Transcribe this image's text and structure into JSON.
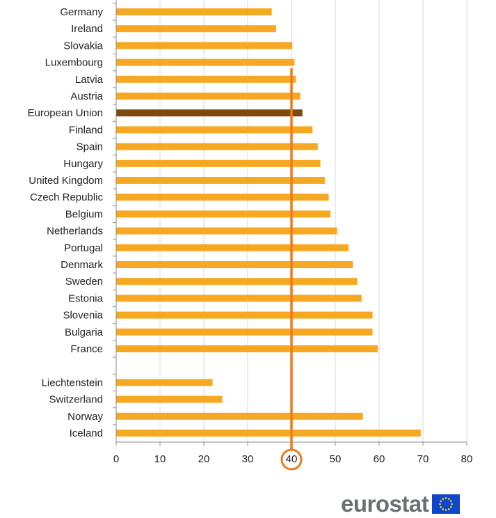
{
  "chart_data": {
    "type": "bar",
    "orientation": "horizontal",
    "title": "",
    "xlabel": "",
    "ylabel": "",
    "xlim": [
      0,
      80
    ],
    "xticks": [
      0,
      10,
      20,
      30,
      40,
      50,
      60,
      70,
      80
    ],
    "grid": true,
    "legend": "none",
    "colors": {
      "bar": "#f7a823",
      "highlight": "#7a4a12",
      "reference": "#f07a1a"
    },
    "reference_line": {
      "value": 40,
      "label": "40"
    },
    "categories": [
      "Germany",
      "Ireland",
      "Slovakia",
      "Luxembourg",
      "Latvia",
      "Austria",
      "European Union",
      "Finland",
      "Spain",
      "Hungary",
      "United Kingdom",
      "Czech Republic",
      "Belgium",
      "Netherlands",
      "Portugal",
      "Denmark",
      "Sweden",
      "Estonia",
      "Slovenia",
      "Bulgaria",
      "France",
      "",
      "Liechtenstein",
      "Switzerland",
      "Norway",
      "Iceland"
    ],
    "values": [
      35.5,
      36.5,
      40.2,
      40.7,
      41.0,
      42.0,
      42.5,
      44.8,
      46.0,
      46.6,
      47.6,
      48.5,
      48.9,
      50.4,
      53.0,
      54.0,
      55.0,
      56.0,
      58.5,
      58.5,
      59.7,
      null,
      22.0,
      24.2,
      56.3,
      69.5
    ],
    "highlight": [
      "European Union"
    ]
  },
  "brand": {
    "name": "eurostat"
  }
}
